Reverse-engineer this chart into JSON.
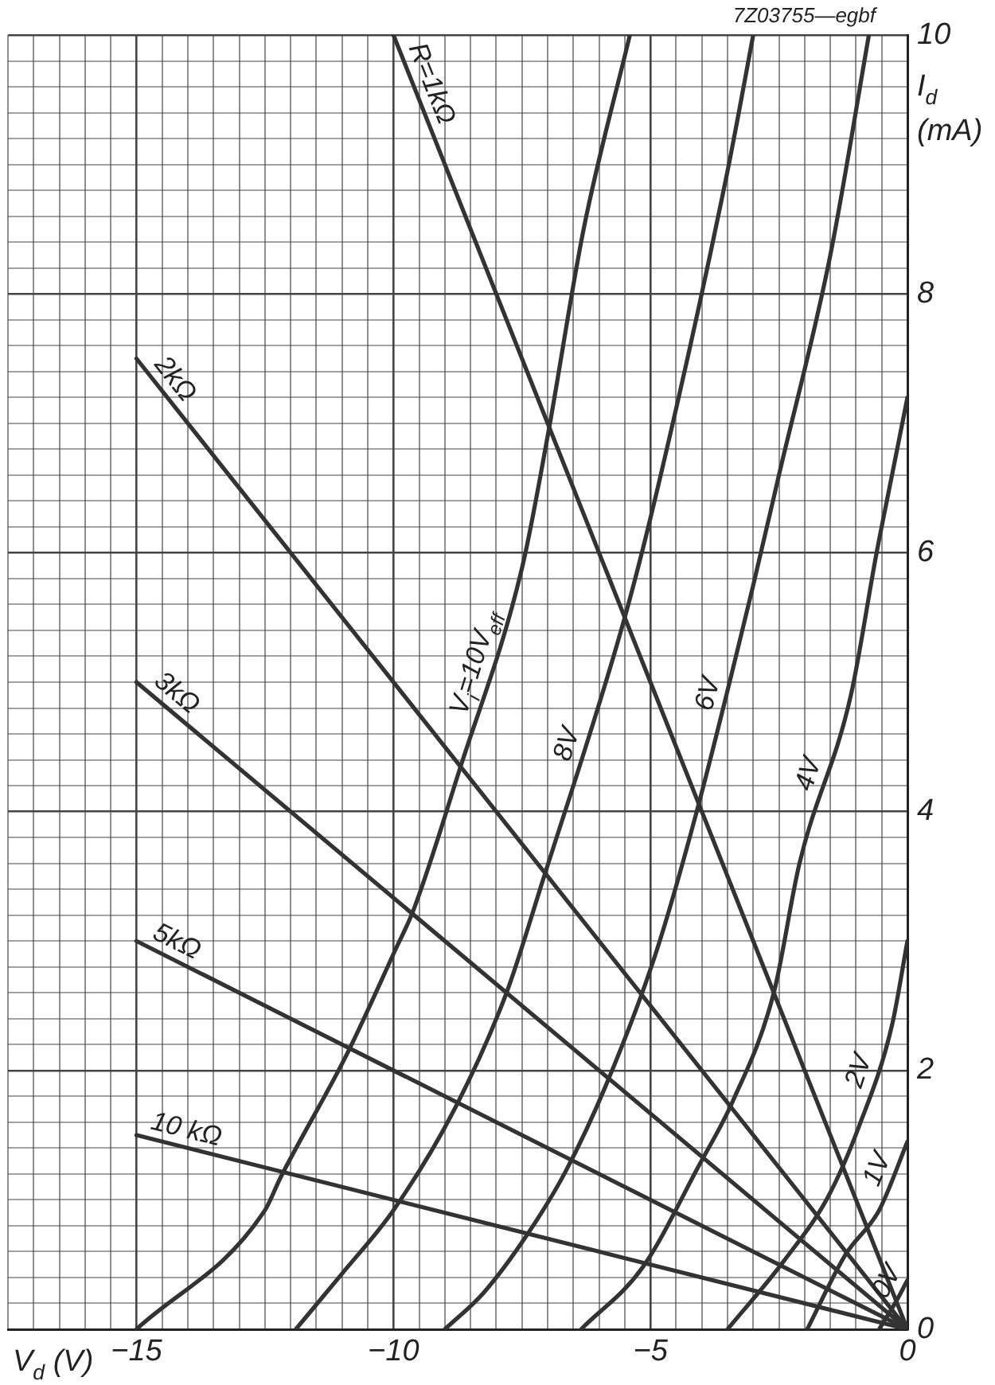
{
  "chart_data": {
    "type": "line",
    "xlabel": "V$_{d}$ (V)",
    "ylabel": "I$_{d}$ (mA)",
    "annotations": [
      "7Z03755—egbf"
    ],
    "xlim": [
      -17.5,
      0
    ],
    "ylim": [
      0,
      10
    ],
    "xticks": [
      {
        "value": -17.5,
        "label": null
      },
      {
        "value": -17,
        "label": null
      },
      {
        "value": -16.5,
        "label": null
      },
      {
        "value": -16,
        "label": null
      },
      {
        "value": -15.5,
        "label": null
      },
      -15,
      {
        "value": -14.5,
        "label": null
      },
      {
        "value": -14,
        "label": null
      },
      {
        "value": -13.5,
        "label": null
      },
      {
        "value": -13,
        "label": null
      },
      {
        "value": -12.5,
        "label": null
      },
      {
        "value": -12,
        "label": null
      },
      {
        "value": -11.5,
        "label": null
      },
      {
        "value": -11,
        "label": null
      },
      {
        "value": -10.5,
        "label": null
      },
      -10,
      {
        "value": -9.5,
        "label": null
      },
      {
        "value": -9,
        "label": null
      },
      {
        "value": -8.5,
        "label": null
      },
      {
        "value": -8,
        "label": null
      },
      {
        "value": -7.5,
        "label": null
      },
      {
        "value": -7,
        "label": null
      },
      {
        "value": -6.5,
        "label": null
      },
      {
        "value": -6,
        "label": null
      },
      {
        "value": -5.5,
        "label": null
      },
      -5,
      {
        "value": -4.5,
        "label": null
      },
      {
        "value": -4,
        "label": null
      },
      {
        "value": -3.5,
        "label": null
      },
      {
        "value": -3,
        "label": null
      },
      {
        "value": -2.5,
        "label": null
      },
      {
        "value": -2,
        "label": null
      },
      {
        "value": -1.5,
        "label": null
      },
      {
        "value": -1,
        "label": null
      },
      {
        "value": -0.5,
        "label": null
      },
      0
    ],
    "yticks": [
      0,
      {
        "value": 0.2,
        "label": null
      },
      {
        "value": 0.4,
        "label": null
      },
      {
        "value": 0.6,
        "label": null
      },
      {
        "value": 0.8,
        "label": null
      },
      {
        "value": 1,
        "label": null
      },
      {
        "value": 1.2,
        "label": null
      },
      {
        "value": 1.4,
        "label": null
      },
      {
        "value": 1.6,
        "label": null
      },
      {
        "value": 1.8,
        "label": null
      },
      2,
      {
        "value": 2.2,
        "label": null
      },
      {
        "value": 2.4,
        "label": null
      },
      {
        "value": 2.6,
        "label": null
      },
      {
        "value": 2.8,
        "label": null
      },
      {
        "value": 3,
        "label": null
      },
      {
        "value": 3.2,
        "label": null
      },
      {
        "value": 3.4,
        "label": null
      },
      {
        "value": 3.6,
        "label": null
      },
      {
        "value": 3.8,
        "label": null
      },
      4,
      {
        "value": 4.2,
        "label": null
      },
      {
        "value": 4.4,
        "label": null
      },
      {
        "value": 4.6,
        "label": null
      },
      {
        "value": 4.8,
        "label": null
      },
      {
        "value": 5,
        "label": null
      },
      {
        "value": 5.2,
        "label": null
      },
      {
        "value": 5.4,
        "label": null
      },
      {
        "value": 5.6,
        "label": null
      },
      {
        "value": 5.8,
        "label": null
      },
      6,
      {
        "value": 6.2,
        "label": null
      },
      {
        "value": 6.4,
        "label": null
      },
      {
        "value": 6.6,
        "label": null
      },
      {
        "value": 6.8,
        "label": null
      },
      {
        "value": 7,
        "label": null
      },
      {
        "value": 7.2,
        "label": null
      },
      {
        "value": 7.4,
        "label": null
      },
      {
        "value": 7.6,
        "label": null
      },
      {
        "value": 7.8,
        "label": null
      },
      8,
      {
        "value": 8.2,
        "label": null
      },
      {
        "value": 8.4,
        "label": null
      },
      {
        "value": 8.6,
        "label": null
      },
      {
        "value": 8.8,
        "label": null
      },
      {
        "value": 9,
        "label": null
      },
      {
        "value": 9.2,
        "label": null
      },
      {
        "value": 9.4,
        "label": null
      },
      {
        "value": 9.6,
        "label": null
      },
      {
        "value": 9.8,
        "label": null
      },
      10
    ],
    "grid": true,
    "legend": false,
    "marker": "none",
    "line_style": "solid",
    "series": [
      {
        "name": "R=1kΩ",
        "color": "#333333",
        "x": [
          -10,
          0
        ],
        "values": [
          10,
          0
        ]
      },
      {
        "name": "2kΩ",
        "color": "#333333",
        "x": [
          -15,
          0
        ],
        "values": [
          7.5,
          0
        ]
      },
      {
        "name": "3kΩ",
        "color": "#333333",
        "x": [
          -15,
          0
        ],
        "values": [
          5,
          0
        ]
      },
      {
        "name": "5kΩ",
        "color": "#333333",
        "x": [
          -15,
          0
        ],
        "values": [
          3,
          0
        ]
      },
      {
        "name": "10 kΩ",
        "color": "#333333",
        "x": [
          -15,
          0
        ],
        "values": [
          1.5,
          0
        ]
      },
      {
        "name": "V$_{i}$=10V$_{eff}$",
        "color": "#333333",
        "x": [
          -15,
          -12.5,
          -12.2,
          -10.9,
          -10,
          -9.6,
          -8.7,
          -7.5,
          -7.0,
          -6.3,
          -5.4
        ],
        "values": [
          0,
          0.92,
          1.17,
          2.13,
          2.9,
          3.25,
          4.34,
          5.88,
          6.9,
          8.5,
          10
        ]
      },
      {
        "name": "8V",
        "color": "#333333",
        "x": [
          -11.9,
          -11.0,
          -10,
          -8.8,
          -7.8,
          -7.1,
          -5.5,
          -4.8,
          -3.5,
          -3.0
        ],
        "values": [
          0,
          0.43,
          0.92,
          1.71,
          2.6,
          3.46,
          5.5,
          6.6,
          8.95,
          10
        ]
      },
      {
        "name": "6V",
        "color": "#333333",
        "x": [
          -9.0,
          -8.25,
          -7.4,
          -6.65,
          -5.85,
          -4.9,
          -4.1,
          -3.0,
          -2.5,
          -1.5,
          -0.75
        ],
        "values": [
          0,
          0.28,
          0.73,
          1.22,
          1.9,
          2.9,
          4.0,
          5.75,
          6.6,
          8.3,
          10
        ]
      },
      {
        "name": "4V",
        "color": "#333333",
        "x": [
          -6.35,
          -5.15,
          -4.05,
          -3.4,
          -2.6,
          -2.1,
          -1.1,
          -0.6,
          -0.3,
          0
        ],
        "values": [
          0,
          0.48,
          1.27,
          1.76,
          2.6,
          3.6,
          4.9,
          6,
          6.6,
          7.2
        ]
      },
      {
        "name": "2V",
        "color": "#333333",
        "x": [
          -3.5,
          -2.4,
          -1.55,
          -0.95,
          -0.3,
          0
        ],
        "values": [
          0,
          0.53,
          1.02,
          1.56,
          2.35,
          3
        ]
      },
      {
        "name": "1V",
        "color": "#333333",
        "x": [
          -1.95,
          -1.2,
          -0.55,
          0
        ],
        "values": [
          0,
          0.58,
          0.92,
          1.45
        ]
      },
      {
        "name": "0V",
        "color": "#333333",
        "x": [
          -0.55,
          -0.2,
          0
        ],
        "values": [
          0,
          0.23,
          0.38
        ]
      }
    ]
  }
}
